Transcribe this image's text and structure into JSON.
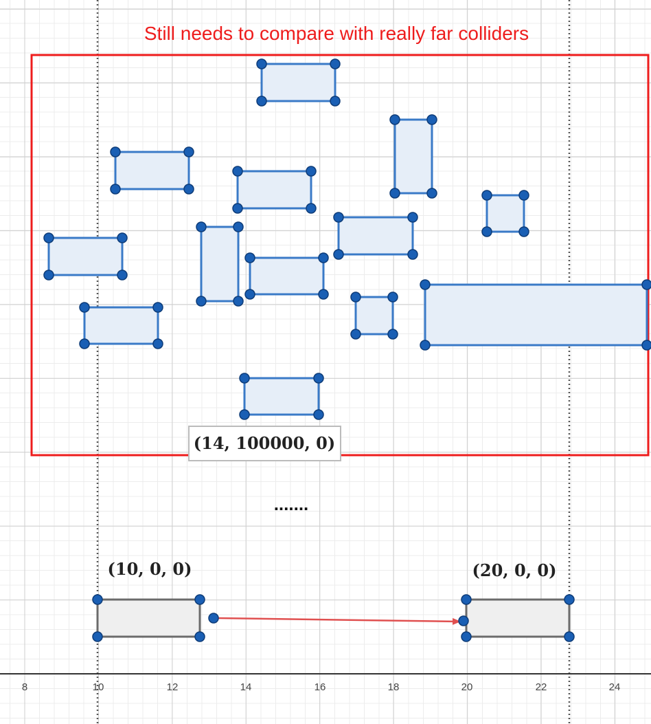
{
  "title": "Still needs to compare with really far colliders",
  "far_label": "(14, 100000, 0)",
  "ellipsis": ".......",
  "origin_label": "(10, 0, 0)",
  "target_label": "(20, 0, 0)",
  "x_axis": {
    "ticks": [
      "8",
      "10",
      "12",
      "14",
      "16",
      "18",
      "20",
      "22",
      "24"
    ]
  },
  "colors": {
    "group_border": "#ee1c1c",
    "collider_stroke": "#3a7ac7",
    "collider_fill": "#e6eef8",
    "vertex": "#1a5fb4",
    "moving_stroke": "#6b6b6b",
    "moving_fill": "#efefef",
    "arrow": "#e05050"
  }
}
